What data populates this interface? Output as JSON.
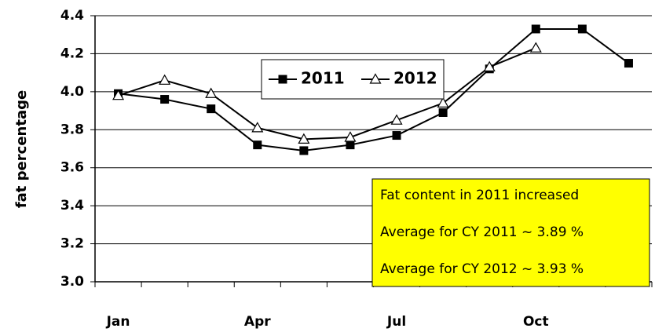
{
  "chart_data": {
    "type": "line",
    "y_label": "fat percentage",
    "categories": [
      "Jan",
      null,
      null,
      "Apr",
      null,
      null,
      "Jul",
      null,
      null,
      "Oct",
      null,
      null
    ],
    "series": [
      {
        "name": "2011",
        "color": "#000000",
        "marker": "square",
        "values": [
          3.99,
          3.96,
          3.91,
          3.72,
          3.69,
          3.72,
          3.77,
          3.89,
          4.12,
          4.33,
          4.33,
          4.15
        ]
      },
      {
        "name": "2012",
        "color": "#000000",
        "marker": "triangle",
        "values": [
          3.98,
          4.06,
          3.99,
          3.81,
          3.75,
          3.76,
          3.85,
          3.94,
          4.13,
          4.23,
          null,
          null
        ]
      }
    ],
    "ylim": [
      3.0,
      4.4
    ],
    "yticks": [
      {
        "value": 3.0,
        "label": "3.0"
      },
      3.2,
      3.4,
      3.6,
      3.8,
      {
        "value": 4.0,
        "label": "4.0"
      },
      4.2,
      4.4
    ],
    "grid": true,
    "annotations": [
      "Fat content in 2011 increased",
      "Average for CY 2011 ~ 3.89 %",
      "Average for CY 2012 ~ 3.93 %"
    ],
    "annotation_color": "#ffff00"
  }
}
